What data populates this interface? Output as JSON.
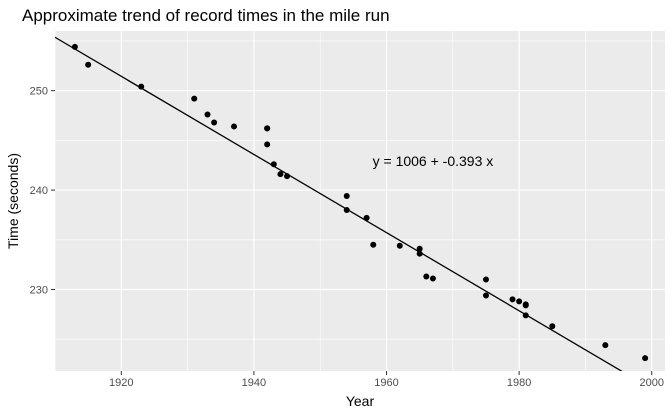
{
  "chart_data": {
    "type": "scatter",
    "title": "Approximate trend of record times in the mile run",
    "xlabel": "Year",
    "ylabel": "Time (seconds)",
    "xlim": [
      1910,
      2002
    ],
    "ylim": [
      221.8,
      256.0
    ],
    "x_ticks": [
      1920,
      1940,
      1960,
      1980,
      2000
    ],
    "y_ticks": [
      230,
      240,
      250
    ],
    "grid": true,
    "legend": "none",
    "panel_color": "#ebebeb",
    "grid_color": "#ffffff",
    "point_color": "#000000",
    "line_color": "#000000",
    "trendline": {
      "intercept": 1006.0,
      "slope": -0.393,
      "x_from": 1910,
      "x_to": 2002
    },
    "annotation": {
      "text": "y = 1006 + -0.393 x",
      "x": 1967,
      "y": 242.4
    },
    "points": [
      {
        "x": 1913,
        "y": 254.4
      },
      {
        "x": 1915,
        "y": 252.6
      },
      {
        "x": 1923,
        "y": 250.4
      },
      {
        "x": 1931,
        "y": 249.2
      },
      {
        "x": 1933,
        "y": 247.6
      },
      {
        "x": 1934,
        "y": 246.8
      },
      {
        "x": 1937,
        "y": 246.4
      },
      {
        "x": 1942,
        "y": 246.2
      },
      {
        "x": 1942,
        "y": 246.2
      },
      {
        "x": 1942,
        "y": 244.6
      },
      {
        "x": 1943,
        "y": 242.6
      },
      {
        "x": 1944,
        "y": 241.6
      },
      {
        "x": 1945,
        "y": 241.4
      },
      {
        "x": 1954,
        "y": 239.4
      },
      {
        "x": 1954,
        "y": 238.0
      },
      {
        "x": 1957,
        "y": 237.2
      },
      {
        "x": 1958,
        "y": 234.5
      },
      {
        "x": 1962,
        "y": 234.4
      },
      {
        "x": 1965,
        "y": 234.1
      },
      {
        "x": 1965,
        "y": 233.6
      },
      {
        "x": 1966,
        "y": 231.3
      },
      {
        "x": 1967,
        "y": 231.1
      },
      {
        "x": 1975,
        "y": 231.0
      },
      {
        "x": 1975,
        "y": 229.4
      },
      {
        "x": 1979,
        "y": 229.0
      },
      {
        "x": 1980,
        "y": 228.8
      },
      {
        "x": 1981,
        "y": 228.5
      },
      {
        "x": 1981,
        "y": 228.4
      },
      {
        "x": 1981,
        "y": 227.4
      },
      {
        "x": 1985,
        "y": 226.3
      },
      {
        "x": 1993,
        "y": 224.4
      },
      {
        "x": 1999,
        "y": 223.1
      }
    ]
  }
}
